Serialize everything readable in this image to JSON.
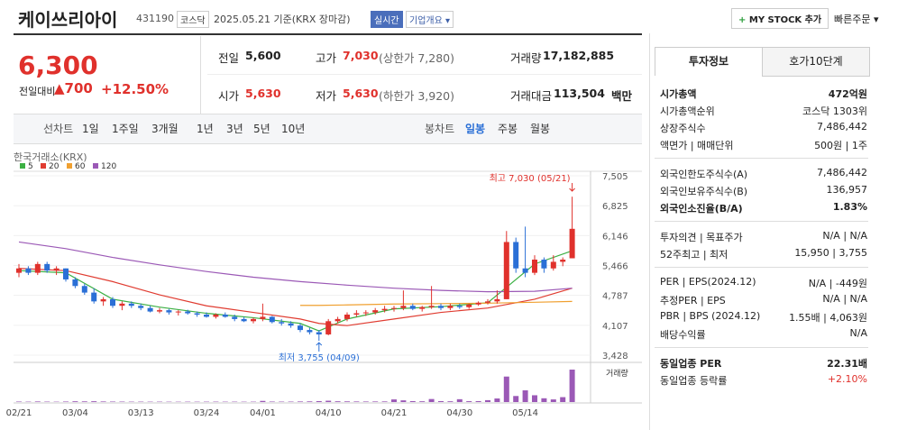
{
  "header": {
    "name": "케이쓰리아이",
    "code": "431190",
    "market": "코스닥",
    "date": "2025.05.21 기준(KRX 장마감)",
    "realtime": "실시간",
    "overview": "기업개요",
    "mystock": "MY STOCK 추가",
    "quick_order": "빠른주문"
  },
  "price": {
    "current": "6,300",
    "change_label": "전일대비",
    "change": "700",
    "change_rate": "+12.50%"
  },
  "summary": [
    [
      {
        "label": "전일",
        "value": "5,600"
      },
      {
        "label": "고가",
        "value": "7,030",
        "note": "(상한가 7,280)"
      },
      {
        "label": "거래량",
        "value": "17,182,885"
      }
    ],
    [
      {
        "label": "시가",
        "value": "5,630"
      },
      {
        "label": "저가",
        "value": "5,630",
        "note": "(하한가 3,920)"
      },
      {
        "label": "거래대금",
        "value": "113,504",
        "note": "백만"
      }
    ]
  ],
  "toolbar": {
    "line": [
      "선차트",
      "1일",
      "1주일",
      "3개월",
      "1년",
      "3년",
      "5년",
      "10년"
    ],
    "candle": [
      "봉차트",
      "일봉",
      "주봉",
      "월봉"
    ],
    "active": "일봉"
  },
  "chart": {
    "source": "한국거래소(KRX)",
    "ylim": [
      3428,
      7505
    ],
    "yticks": [
      {
        "value": 7505,
        "label": "7,505"
      },
      {
        "value": 6825,
        "label": "6,825"
      },
      {
        "value": 6146,
        "label": "6,146"
      },
      {
        "value": 5466,
        "label": "5,466"
      },
      {
        "value": 4787,
        "label": "4,787"
      },
      {
        "value": 4107,
        "label": "4,107"
      },
      {
        "value": 3428,
        "label": "3,428"
      }
    ],
    "x_labels": [
      {
        "index": 0,
        "label": "02/21"
      },
      {
        "index": 6,
        "label": "03/04"
      },
      {
        "index": 13,
        "label": "03/13"
      },
      {
        "index": 20,
        "label": "03/24"
      },
      {
        "index": 26,
        "label": "04/01"
      },
      {
        "index": 33,
        "label": "04/10"
      },
      {
        "index": 40,
        "label": "04/21"
      },
      {
        "index": 47,
        "label": "04/30"
      },
      {
        "index": 54,
        "label": "05/14"
      }
    ],
    "up_color": "#e0312c",
    "down_color": "#2a6fd6",
    "candles": [
      [
        5300,
        5500,
        5200,
        5400
      ],
      [
        5400,
        5450,
        5250,
        5300
      ],
      [
        5300,
        5550,
        5250,
        5500
      ],
      [
        5500,
        5550,
        5300,
        5350
      ],
      [
        5350,
        5450,
        5250,
        5400
      ],
      [
        5400,
        5400,
        5100,
        5150
      ],
      [
        5150,
        5200,
        4950,
        5000
      ],
      [
        5000,
        5050,
        4800,
        4850
      ],
      [
        4850,
        4950,
        4600,
        4650
      ],
      [
        4650,
        4750,
        4550,
        4700
      ],
      [
        4700,
        4750,
        4500,
        4550
      ],
      [
        4550,
        4650,
        4450,
        4600
      ],
      [
        4600,
        4650,
        4500,
        4550
      ],
      [
        4550,
        4600,
        4450,
        4500
      ],
      [
        4500,
        4550,
        4400,
        4420
      ],
      [
        4420,
        4500,
        4380,
        4450
      ],
      [
        4450,
        4480,
        4350,
        4400
      ],
      [
        4400,
        4450,
        4330,
        4420
      ],
      [
        4420,
        4460,
        4350,
        4380
      ],
      [
        4380,
        4420,
        4300,
        4350
      ],
      [
        4350,
        4400,
        4280,
        4300
      ],
      [
        4300,
        4380,
        4260,
        4350
      ],
      [
        4350,
        4400,
        4280,
        4300
      ],
      [
        4300,
        4350,
        4200,
        4250
      ],
      [
        4250,
        4300,
        4180,
        4200
      ],
      [
        4200,
        4280,
        4150,
        4250
      ],
      [
        4250,
        4600,
        4200,
        4300
      ],
      [
        4300,
        4320,
        4150,
        4180
      ],
      [
        4180,
        4250,
        4100,
        4150
      ],
      [
        4150,
        4200,
        4050,
        4100
      ],
      [
        4100,
        4150,
        3950,
        4000
      ],
      [
        4000,
        4050,
        3900,
        3950
      ],
      [
        3950,
        4000,
        3755,
        3900
      ],
      [
        3900,
        4250,
        3880,
        4200
      ],
      [
        4200,
        4300,
        4150,
        4250
      ],
      [
        4250,
        4400,
        4200,
        4350
      ],
      [
        4350,
        4450,
        4300,
        4380
      ],
      [
        4380,
        4450,
        4320,
        4400
      ],
      [
        4400,
        4500,
        4350,
        4450
      ],
      [
        4450,
        4550,
        4400,
        4480
      ],
      [
        4480,
        4550,
        4420,
        4500
      ],
      [
        4500,
        4900,
        4450,
        4550
      ],
      [
        4550,
        4600,
        4450,
        4480
      ],
      [
        4480,
        4550,
        4420,
        4520
      ],
      [
        4520,
        5000,
        4480,
        4550
      ],
      [
        4550,
        4600,
        4450,
        4500
      ],
      [
        4500,
        4600,
        4450,
        4550
      ],
      [
        4550,
        4600,
        4480,
        4520
      ],
      [
        4520,
        4600,
        4480,
        4580
      ],
      [
        4580,
        4650,
        4550,
        4620
      ],
      [
        4620,
        4700,
        4580,
        4650
      ],
      [
        4650,
        4900,
        4600,
        4700
      ],
      [
        4700,
        6250,
        4700,
        6000
      ],
      [
        6000,
        6100,
        5300,
        5400
      ],
      [
        5400,
        6350,
        5200,
        5300
      ],
      [
        5300,
        5700,
        5250,
        5600
      ],
      [
        5600,
        5650,
        5300,
        5400
      ],
      [
        5400,
        5700,
        5350,
        5550
      ],
      [
        5550,
        5650,
        5450,
        5600
      ],
      [
        5630,
        7030,
        5630,
        6300
      ]
    ],
    "volume_label": "거래량",
    "volume_color": "#9b59b6",
    "vol_lim": [
      0,
      17182885
    ],
    "volumes": [
      250000,
      200000,
      300000,
      220000,
      180000,
      260000,
      400000,
      350000,
      420000,
      300000,
      250000,
      230000,
      200000,
      210000,
      190000,
      200000,
      180000,
      170000,
      190000,
      180000,
      200000,
      210000,
      190000,
      200000,
      180000,
      190000,
      600000,
      250000,
      220000,
      230000,
      300000,
      350000,
      500000,
      700000,
      400000,
      350000,
      300000,
      280000,
      300000,
      320000,
      1400000,
      900000,
      500000,
      400000,
      1600000,
      500000,
      400000,
      1500000,
      450000,
      500000,
      1000000,
      1900000,
      13500000,
      3200000,
      6200000,
      3600000,
      2000000,
      1400000,
      2600000,
      17182885
    ],
    "high_note": "최고 7,030 (05/21)",
    "low_note": "최저 3,755 (04/09)",
    "ma": [
      {
        "name": "5",
        "color": "#3cb043",
        "x": [
          0,
          5,
          10,
          15,
          20,
          25,
          30,
          32,
          35,
          40,
          45,
          50,
          55,
          59
        ],
        "values": [
          5350,
          5300,
          4700,
          4520,
          4380,
          4280,
          4150,
          3980,
          4250,
          4480,
          4530,
          4620,
          5500,
          5800
        ]
      },
      {
        "name": "20",
        "color": "#e03c31",
        "x": [
          0,
          5,
          10,
          15,
          20,
          25,
          30,
          32,
          35,
          40,
          45,
          50,
          55,
          59
        ],
        "values": [
          5400,
          5350,
          5100,
          4800,
          4550,
          4400,
          4250,
          4150,
          4100,
          4250,
          4400,
          4500,
          4700,
          4950
        ]
      },
      {
        "name": "60",
        "color": "#f0a030",
        "x": [
          30,
          32,
          35,
          40,
          45,
          50,
          55,
          59
        ],
        "values": [
          4560,
          4560,
          4570,
          4590,
          4600,
          4610,
          4630,
          4650
        ]
      },
      {
        "name": "120",
        "color": "#9b59b6",
        "x": [
          0,
          5,
          10,
          15,
          20,
          25,
          30,
          35,
          40,
          45,
          50,
          55,
          59
        ],
        "values": [
          6000,
          5850,
          5650,
          5480,
          5330,
          5200,
          5100,
          5020,
          4950,
          4900,
          4870,
          4880,
          4950
        ]
      }
    ]
  },
  "info": {
    "tabs": [
      "투자정보",
      "호가10단계"
    ],
    "groups": [
      [
        {
          "label": "시가총액",
          "value": "472억원",
          "bold": true
        },
        {
          "label": "시가총액순위",
          "value": "코스닥 1303위"
        },
        {
          "label": "상장주식수",
          "value": "7,486,442"
        },
        {
          "label": "액면가 | 매매단위",
          "value": "500원 | 1주"
        }
      ],
      [
        {
          "label": "외국인한도주식수(A)",
          "value": "7,486,442"
        },
        {
          "label": "외국인보유주식수(B)",
          "value": "136,957"
        },
        {
          "label": "외국인소진율(B/A)",
          "value": "1.83%",
          "bold": true
        }
      ],
      [
        {
          "label": "투자의견 | 목표주가",
          "value": "N/A | N/A"
        },
        {
          "label": "52주최고 | 최저",
          "value": "15,950 | 3,755"
        }
      ],
      [
        {
          "label": "PER | EPS(2024.12)",
          "value": "N/A | -449원"
        },
        {
          "label": "추정PER | EPS",
          "value": "N/A | N/A"
        },
        {
          "label": "PBR | BPS (2024.12)",
          "value": "1.55배 | 4,063원"
        },
        {
          "label": "배당수익률",
          "value": "N/A"
        }
      ],
      [
        {
          "label": "동일업종 PER",
          "value": "22.31배",
          "bold": true
        },
        {
          "label": "동일업종 등락률",
          "value": "+2.10%",
          "red": true
        }
      ]
    ]
  }
}
